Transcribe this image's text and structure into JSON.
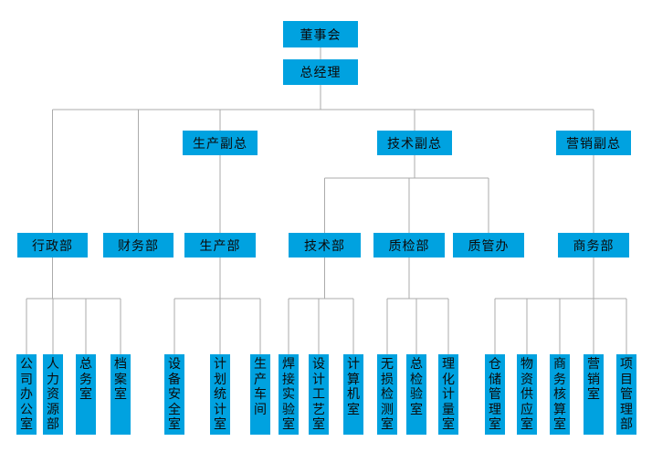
{
  "colors": {
    "background": "#ffffff",
    "box_fill": "#00a2e0",
    "connector_line": "#ababab",
    "text": "#0b0b0b"
  },
  "org": {
    "type": "org-chart",
    "nodes": [
      {
        "id": "board",
        "label": "董事会",
        "parent": null
      },
      {
        "id": "gm",
        "label": "总经理",
        "parent": "board"
      },
      {
        "id": "vp-prod",
        "label": "生产副总",
        "parent": "gm"
      },
      {
        "id": "vp-tech",
        "label": "技术副总",
        "parent": "gm"
      },
      {
        "id": "vp-mkt",
        "label": "营销副总",
        "parent": "gm"
      },
      {
        "id": "admin",
        "label": "行政部",
        "parent": "gm"
      },
      {
        "id": "finance",
        "label": "财务部",
        "parent": "gm"
      },
      {
        "id": "prod",
        "label": "生产部",
        "parent": "vp-prod"
      },
      {
        "id": "tech",
        "label": "技术部",
        "parent": "vp-tech"
      },
      {
        "id": "qc",
        "label": "质检部",
        "parent": "vp-tech"
      },
      {
        "id": "qm",
        "label": "质管办",
        "parent": "vp-tech"
      },
      {
        "id": "biz",
        "label": "商务部",
        "parent": "vp-mkt"
      },
      {
        "id": "company-office",
        "label": "公司办公室",
        "parent": "admin"
      },
      {
        "id": "hr",
        "label": "人力资源部",
        "parent": "admin"
      },
      {
        "id": "general-affairs",
        "label": "总务室",
        "parent": "admin"
      },
      {
        "id": "archives",
        "label": "档案室",
        "parent": "admin"
      },
      {
        "id": "equip-safety",
        "label": "设备安全室",
        "parent": "prod"
      },
      {
        "id": "plan-stat",
        "label": "计划统计室",
        "parent": "prod"
      },
      {
        "id": "workshop",
        "label": "生产车间",
        "parent": "prod"
      },
      {
        "id": "welding-lab",
        "label": "焊接实验室",
        "parent": "tech"
      },
      {
        "id": "design-process",
        "label": "设计工艺室",
        "parent": "tech"
      },
      {
        "id": "computer-room",
        "label": "计算机室",
        "parent": "tech"
      },
      {
        "id": "ndt",
        "label": "无损检测室",
        "parent": "qc"
      },
      {
        "id": "inspection",
        "label": "总检验室",
        "parent": "qc"
      },
      {
        "id": "metrology",
        "label": "理化计量室",
        "parent": "qc"
      },
      {
        "id": "warehouse",
        "label": "仓储管理室",
        "parent": "biz"
      },
      {
        "id": "supply",
        "label": "物资供应室",
        "parent": "biz"
      },
      {
        "id": "biz-accounting",
        "label": "商务核算室",
        "parent": "biz"
      },
      {
        "id": "marketing-office",
        "label": "营销室",
        "parent": "biz"
      },
      {
        "id": "project-mgmt",
        "label": "项目管理部",
        "parent": "biz"
      }
    ]
  }
}
